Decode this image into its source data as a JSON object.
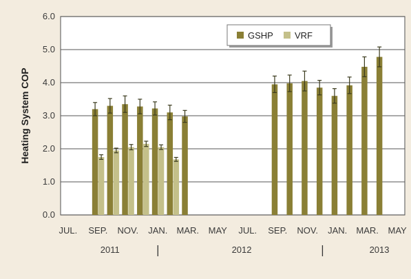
{
  "chart_data": {
    "type": "bar",
    "ylabel": "Heating System COP",
    "ylim": [
      0,
      6
    ],
    "yticks": [
      "0.0",
      "1.0",
      "2.0",
      "3.0",
      "4.0",
      "5.0",
      "6.0"
    ],
    "x_tick_labels": [
      "JUL.",
      "SEP.",
      "NOV.",
      "JAN.",
      "MAR.",
      "MAY",
      "JUL.",
      "SEP.",
      "NOV.",
      "JAN.",
      "MAR.",
      "MAY"
    ],
    "year_labels": [
      "2011",
      "2012",
      "2013"
    ],
    "categories": [
      "Jul 2011",
      "Aug 2011",
      "Sep 2011",
      "Oct 2011",
      "Nov 2011",
      "Dec 2011",
      "Jan 2012",
      "Feb 2012",
      "Mar 2012",
      "Apr 2012",
      "May 2012",
      "Jun 2012",
      "Jul 2012",
      "Aug 2012",
      "Sep 2012",
      "Oct 2012",
      "Nov 2012",
      "Dec 2012",
      "Jan 2013",
      "Feb 2013",
      "Mar 2013",
      "Apr 2013",
      "May 2013"
    ],
    "series": [
      {
        "name": "GSHP",
        "color": "#8a7f35",
        "values": [
          null,
          null,
          3.2,
          3.3,
          3.35,
          3.28,
          3.22,
          3.1,
          2.98,
          null,
          null,
          null,
          null,
          null,
          3.95,
          3.98,
          4.05,
          3.85,
          3.6,
          3.92,
          4.48,
          4.78,
          null
        ],
        "errors": [
          null,
          null,
          0.2,
          0.22,
          0.25,
          0.22,
          0.2,
          0.22,
          0.18,
          null,
          null,
          null,
          null,
          null,
          0.25,
          0.25,
          0.3,
          0.22,
          0.22,
          0.25,
          0.3,
          0.3,
          null
        ]
      },
      {
        "name": "VRF",
        "color": "#c4c08a",
        "values": [
          null,
          null,
          1.75,
          1.95,
          2.05,
          2.15,
          2.05,
          1.68,
          null,
          null,
          null,
          null,
          null,
          null,
          null,
          null,
          null,
          null,
          null,
          null,
          null,
          null,
          null
        ],
        "errors": [
          null,
          null,
          0.07,
          0.07,
          0.08,
          0.08,
          0.07,
          0.06,
          null,
          null,
          null,
          null,
          null,
          null,
          null,
          null,
          null,
          null,
          null,
          null,
          null,
          null,
          null
        ]
      }
    ],
    "grid": true,
    "legend_position": "top-right"
  }
}
